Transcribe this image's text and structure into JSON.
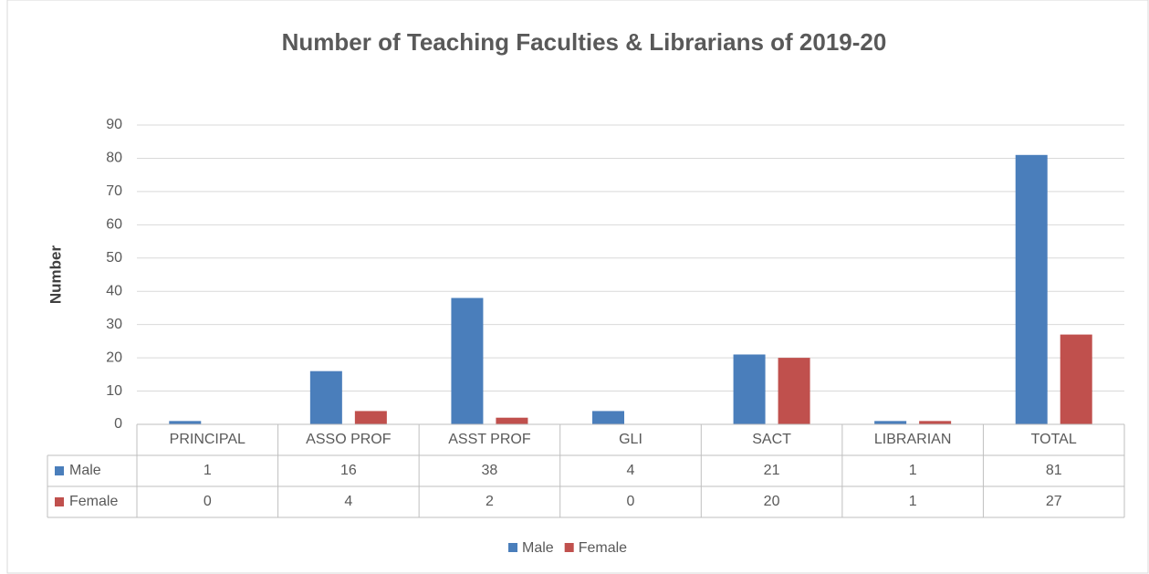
{
  "chart_data": {
    "type": "bar",
    "title": "Number of Teaching Faculties & Librarians of 2019-20",
    "y_label": "Number",
    "categories": [
      "PRINCIPAL",
      "ASSO PROF",
      "ASST PROF",
      "GLI",
      "SACT",
      "LIBRARIAN",
      "TOTAL"
    ],
    "series": [
      {
        "name": "Male",
        "color": "#4a7ebb",
        "values": [
          1,
          16,
          38,
          4,
          21,
          1,
          81
        ]
      },
      {
        "name": "Female",
        "color": "#c0504d",
        "values": [
          0,
          4,
          2,
          0,
          20,
          1,
          27
        ]
      }
    ],
    "ylim": [
      0,
      90
    ],
    "yticks": [
      0,
      10,
      20,
      30,
      40,
      50,
      60,
      70,
      80,
      90
    ],
    "grid": true,
    "data_table": true
  }
}
